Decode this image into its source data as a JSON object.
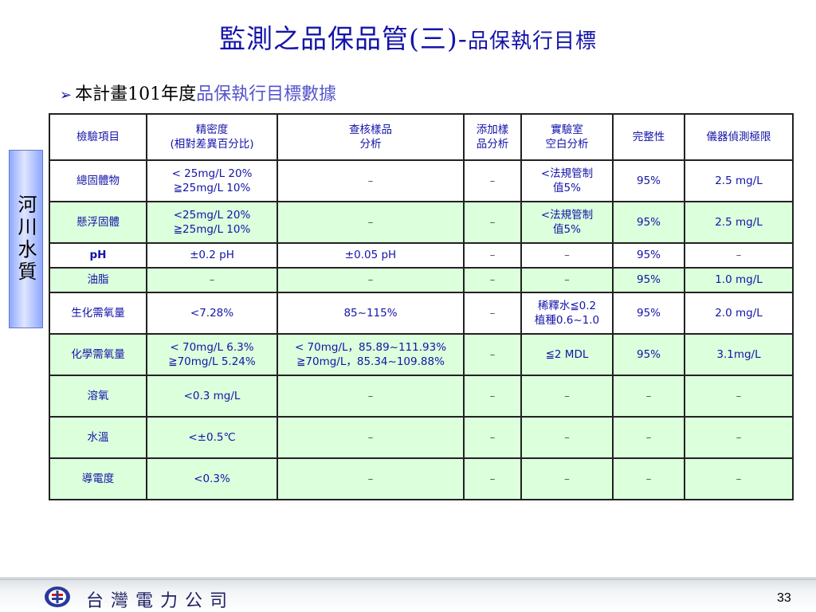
{
  "title": {
    "main": "監測之品保品管(三)-",
    "sub": "品保執行目標"
  },
  "bullet": {
    "plain": "本計畫101年度",
    "highlight": "品保執行目標數據"
  },
  "side_label": "河川水質",
  "table": {
    "headers": [
      "檢驗項目",
      "精密度\n(相對差異百分比)",
      "查核樣品\n分析",
      "添加樣\n品分析",
      "實驗室\n空白分析",
      "完整性",
      "儀器偵測極限"
    ],
    "rows": [
      [
        "總固體物",
        "< 25mg/L 20%\n≧25mg/L 10%",
        "–",
        "–",
        "<法規管制\n值5%",
        "95%",
        "2.5 mg/L"
      ],
      [
        "懸浮固體",
        "<25mg/L 20%\n≧25mg/L 10%",
        "–",
        "–",
        "<法規管制\n值5%",
        "95%",
        "2.5 mg/L"
      ],
      [
        "pH",
        "±0.2 pH",
        "±0.05 pH",
        "–",
        "–",
        "95%",
        "–"
      ],
      [
        "油脂",
        "–",
        "–",
        "–",
        "–",
        "95%",
        "1.0 mg/L"
      ],
      [
        "生化需氧量",
        "<7.28%",
        "85~115%",
        "–",
        "稀釋水≦0.2\n植種0.6~1.0",
        "95%",
        "2.0 mg/L"
      ],
      [
        "化學需氧量",
        "< 70mg/L 6.3%\n≧70mg/L 5.24%",
        "< 70mg/L，85.89~111.93%\n≧70mg/L，85.34~109.88%",
        "–",
        "≦2 MDL",
        "95%",
        "3.1mg/L"
      ],
      [
        "溶氧",
        "<0.3 mg/L",
        "–",
        "–",
        "–",
        "–",
        "–"
      ],
      [
        "水溫",
        "<±0.5℃",
        "–",
        "–",
        "–",
        "–",
        "–"
      ],
      [
        "導電度",
        "<0.3%",
        "–",
        "–",
        "–",
        "–",
        "–"
      ]
    ]
  },
  "footer": {
    "company": "台灣電力公司",
    "page": "33"
  },
  "colors": {
    "title": "#1414a8",
    "table_text": "#1414a8",
    "green_row": "#dcffdc",
    "side_box": "#8ea8ff"
  }
}
